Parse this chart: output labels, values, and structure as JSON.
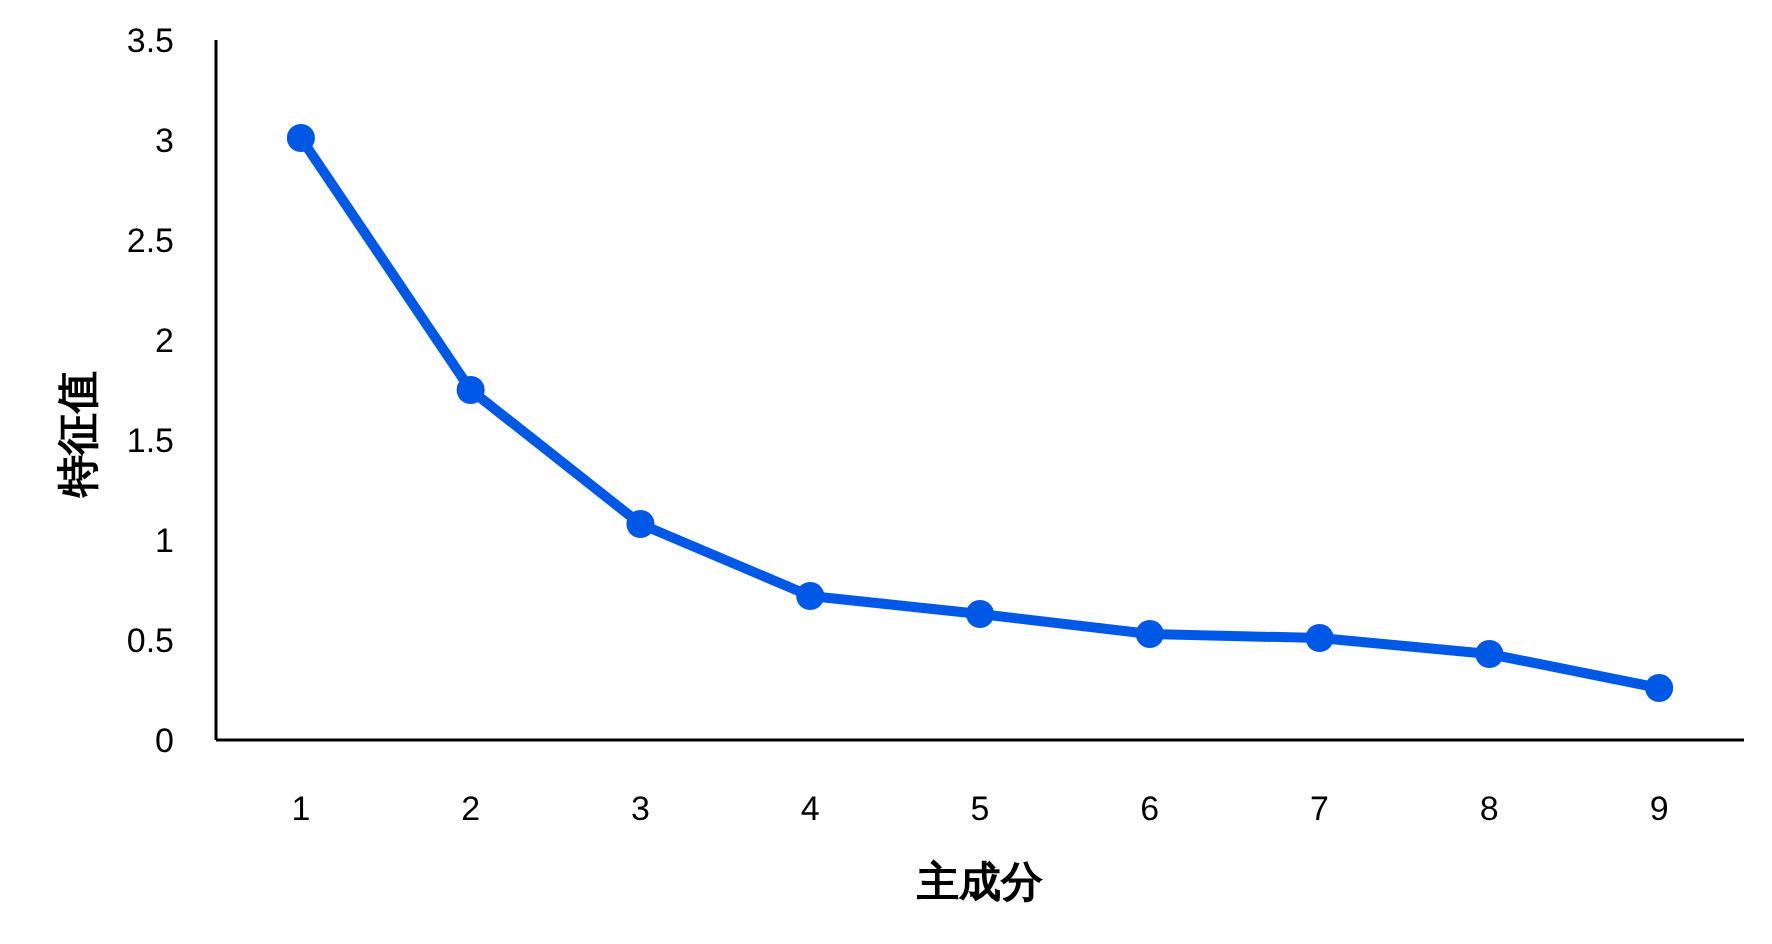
{
  "chart_data": {
    "type": "line",
    "xlabel": "主成分",
    "ylabel": "特征值",
    "categories": [
      "1",
      "2",
      "3",
      "4",
      "5",
      "6",
      "7",
      "8",
      "9"
    ],
    "series": [
      {
        "color": "#0058e6",
        "values": [
          3.01,
          1.75,
          1.08,
          0.72,
          0.63,
          0.53,
          0.51,
          0.43,
          0.26
        ]
      }
    ],
    "ylim": [
      0,
      3.5
    ],
    "yticks": [
      0,
      0.5,
      1,
      1.5,
      2,
      2.5,
      3,
      3.5
    ],
    "marker": "circle",
    "line_style": "solid"
  }
}
